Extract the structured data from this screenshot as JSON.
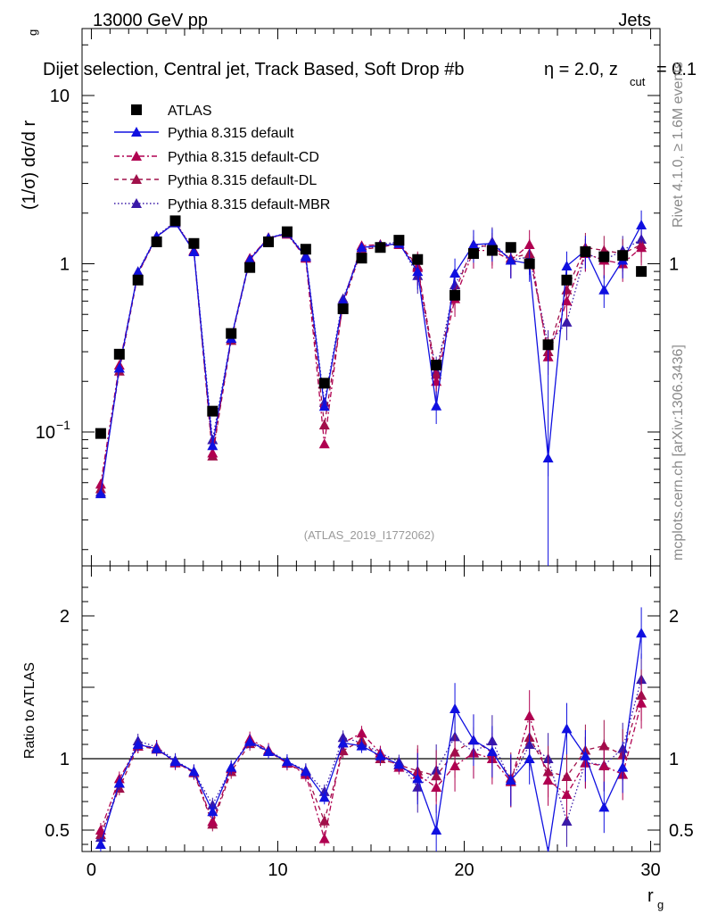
{
  "header": {
    "left_label": "13000 GeV pp",
    "right_label": "Jets",
    "title": "Dijet selection, Central jet, Track Based, Soft Drop #b",
    "title_tail": "η = 2.0, z",
    "title_sub": "cut",
    "title_end": "= 0.1"
  },
  "side": {
    "rivet_label": "Rivet 4.1.0, ≥ 1.6M events",
    "mcplots_label": "mcplots.cern.ch [arXiv:1306.3436]"
  },
  "analysis_label": "(ATLAS_2019_I1772062)",
  "colors": {
    "atlas": "#000000",
    "default": "#1010e0",
    "cd": "#b00050",
    "dl": "#a0104a",
    "mbr": "#3a1aa8"
  },
  "chart_data": {
    "type": "line",
    "title": "Dijet selection, Central jet, Track Based, Soft Drop #b η = 2.0, z_cut = 0.1",
    "xlabel": "r",
    "xlabel_sub": "g",
    "ylabel_main": "(1/σ) dσ/d r",
    "ylabel_main_sub": "g",
    "ylabel_ratio": "Ratio to ATLAS",
    "xlim": [
      -0.5,
      30.5
    ],
    "ylim_main": [
      0.016,
      25
    ],
    "ylim_ratio": [
      0.35,
      2.35
    ],
    "x_ticks": [
      0,
      10,
      20,
      30
    ],
    "x_tick_labels": [
      "0",
      "10",
      "20",
      "30"
    ],
    "y_main_tick_labels": [
      {
        "value": 0.1,
        "base": "10",
        "exp": "−1"
      },
      {
        "value": 1,
        "base": "1",
        "exp": ""
      },
      {
        "value": 10,
        "base": "10",
        "exp": ""
      }
    ],
    "y_ratio_tick_labels": [
      "0.5",
      "1",
      "2"
    ],
    "y_ratio_ticks": [
      0.5,
      1,
      2
    ],
    "legend": [
      "ATLAS",
      "Pythia 8.315 default",
      "Pythia 8.315 default-CD",
      "Pythia 8.315 default-DL",
      "Pythia 8.315 default-MBR"
    ],
    "x": [
      0.5,
      1.5,
      2.5,
      3.5,
      4.5,
      5.5,
      6.5,
      7.5,
      8.5,
      9.5,
      10.5,
      11.5,
      12.5,
      13.5,
      14.5,
      15.5,
      16.5,
      17.5,
      18.5,
      19.5,
      20.5,
      21.5,
      22.5,
      23.5,
      24.5,
      25.5,
      26.5,
      27.5,
      28.5,
      29.5
    ],
    "atlas": [
      0.098,
      0.29,
      0.8,
      1.35,
      1.8,
      1.32,
      0.133,
      0.385,
      0.95,
      1.35,
      1.55,
      1.22,
      0.195,
      0.54,
      1.08,
      1.25,
      1.38,
      1.06,
      0.25,
      0.65,
      1.15,
      1.2,
      1.25,
      1.0,
      0.33,
      0.8,
      1.18,
      1.1,
      1.12,
      0.9
    ],
    "series": [
      {
        "name": "Pythia 8.315 default",
        "key": "default",
        "values": [
          0.043,
          0.24,
          0.89,
          1.45,
          1.75,
          1.18,
          0.083,
          0.36,
          1.06,
          1.42,
          1.52,
          1.1,
          0.142,
          0.6,
          1.25,
          1.28,
          1.32,
          0.9,
          0.143,
          0.88,
          1.3,
          1.32,
          1.05,
          1.0,
          0.07,
          0.97,
          1.2,
          0.7,
          1.05,
          1.7
        ]
      },
      {
        "name": "Pythia 8.315 default-CD",
        "key": "cd",
        "values": [
          0.049,
          0.25,
          0.88,
          1.45,
          1.75,
          1.2,
          0.075,
          0.36,
          1.08,
          1.43,
          1.5,
          1.08,
          0.085,
          0.6,
          1.28,
          1.3,
          1.3,
          0.95,
          0.2,
          0.62,
          1.2,
          1.2,
          1.05,
          1.3,
          0.28,
          0.6,
          1.15,
          1.05,
          1.0,
          1.25
        ]
      },
      {
        "name": "Pythia 8.315 default-DL",
        "key": "dl",
        "values": [
          0.046,
          0.23,
          0.87,
          1.44,
          1.76,
          1.19,
          0.072,
          0.35,
          1.05,
          1.42,
          1.5,
          1.1,
          0.11,
          0.57,
          1.22,
          1.25,
          1.32,
          0.97,
          0.22,
          0.68,
          1.3,
          1.25,
          1.08,
          1.15,
          0.3,
          0.7,
          1.25,
          1.2,
          1.15,
          1.3
        ]
      },
      {
        "name": "Pythia 8.315 default-MBR",
        "key": "mbr",
        "values": [
          0.044,
          0.24,
          0.9,
          1.46,
          1.78,
          1.2,
          0.09,
          0.36,
          1.07,
          1.43,
          1.52,
          1.12,
          0.15,
          0.62,
          1.2,
          1.3,
          1.35,
          0.85,
          0.23,
          0.75,
          1.2,
          1.35,
          1.05,
          1.1,
          0.33,
          0.45,
          1.15,
          1.05,
          1.2,
          1.4
        ]
      }
    ],
    "ratios": {
      "default": [
        0.4,
        0.83,
        1.1,
        1.07,
        0.98,
        0.91,
        0.63,
        0.94,
        1.12,
        1.05,
        0.98,
        0.91,
        0.73,
        1.11,
        1.09,
        1.02,
        0.96,
        0.86,
        0.5,
        1.35,
        1.13,
        1.05,
        0.85,
        1.0,
        0.2,
        1.21,
        1.02,
        0.66,
        0.94,
        1.88
      ],
      "cd": [
        0.5,
        0.86,
        1.09,
        1.08,
        0.97,
        0.91,
        0.56,
        0.93,
        1.14,
        1.06,
        0.97,
        0.89,
        0.44,
        1.11,
        1.18,
        1.04,
        0.94,
        0.89,
        0.8,
        0.95,
        1.04,
        1.0,
        0.84,
        1.3,
        0.85,
        0.75,
        0.97,
        0.95,
        0.89,
        1.39
      ]
    }
  }
}
